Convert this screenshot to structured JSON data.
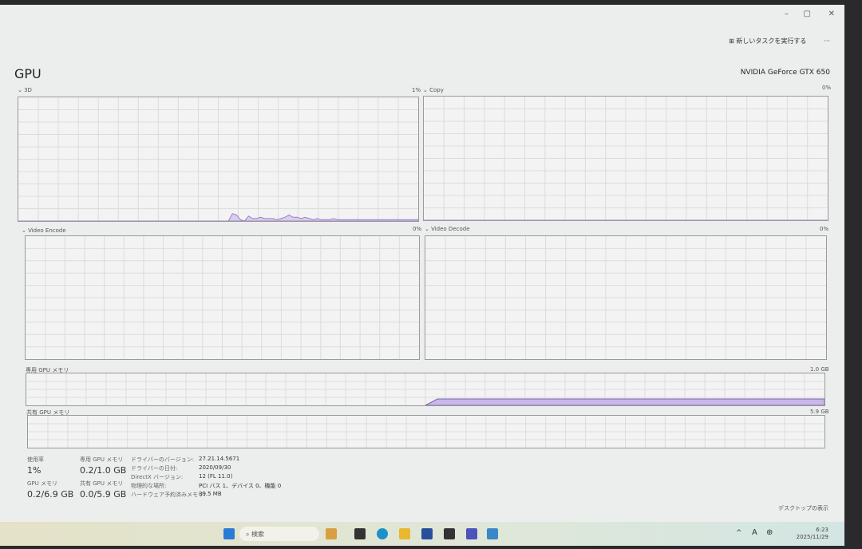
{
  "window": {
    "minimize": "–",
    "maximize": "▢",
    "close": "✕",
    "run_new_task": "新しいタスクを実行する",
    "more": "···"
  },
  "header": {
    "title": "GPU",
    "gpu_name": "NVIDIA GeForce GTX 650"
  },
  "graphs": [
    {
      "label": "3D",
      "value": "1%",
      "series": [
        0,
        0,
        0,
        0,
        0,
        0,
        0,
        0,
        0,
        0,
        0,
        0,
        0,
        0,
        0,
        0,
        0,
        0,
        0,
        0,
        0,
        0,
        0,
        0,
        0,
        0,
        0,
        0,
        0,
        0,
        0,
        0,
        0,
        0,
        0,
        0,
        0,
        0,
        0,
        0,
        0,
        0,
        0,
        0,
        0,
        0,
        0,
        0,
        0,
        0,
        0,
        0,
        0,
        6,
        5,
        1,
        0,
        4,
        2,
        2,
        3,
        2,
        2,
        2,
        1,
        2,
        3,
        5,
        3,
        3,
        2,
        3,
        2,
        1,
        2,
        1,
        1,
        1,
        2,
        1,
        1,
        1,
        1,
        1,
        1,
        1,
        1,
        1,
        1,
        1,
        1,
        1,
        1,
        1,
        1,
        1,
        1,
        1,
        1,
        1
      ]
    },
    {
      "label": "Copy",
      "value": "0%",
      "series": [
        0,
        0,
        0,
        0,
        0,
        0,
        0,
        0,
        0,
        0,
        0,
        0,
        0,
        0,
        0,
        0,
        0,
        0,
        0,
        0,
        0,
        0,
        0,
        0,
        0,
        0,
        0,
        0,
        0,
        0,
        0,
        0,
        0,
        0,
        0,
        0,
        0,
        0,
        0,
        0,
        0,
        0,
        0,
        0,
        0,
        0,
        0,
        0,
        0,
        0,
        0,
        0,
        0,
        0,
        0,
        0,
        0,
        0,
        0,
        0,
        0,
        0,
        0,
        0,
        0,
        0,
        0,
        0,
        0,
        0,
        0,
        0,
        0,
        0,
        0,
        0,
        0,
        0,
        0,
        0,
        0,
        0,
        0,
        0,
        0,
        0,
        0,
        0,
        0,
        0,
        0,
        0,
        0,
        0,
        0,
        0,
        0,
        0,
        0,
        0
      ]
    },
    {
      "label": "Video Encode",
      "value": "0%",
      "series": []
    },
    {
      "label": "Video Decode",
      "value": "0%",
      "series": []
    }
  ],
  "dedicated_memory": {
    "label": "専用 GPU メモリ",
    "max": "1.0 GB",
    "usage_gb": 0.2,
    "start_fraction": 0.5
  },
  "shared_memory": {
    "label": "共有 GPU メモリ",
    "max": "5.9 GB"
  },
  "stats": {
    "utilization_label": "使用率",
    "utilization": "1%",
    "dedicated_label": "専用 GPU メモリ",
    "dedicated": "0.2/1.0 GB",
    "gpu_mem_label": "GPU メモリ",
    "gpu_mem": "0.2/6.9 GB",
    "shared_label": "共有 GPU メモリ",
    "shared": "0.0/5.9 GB",
    "details": [
      {
        "k": "ドライバーのバージョン:",
        "v": "27.21.14.5671"
      },
      {
        "k": "ドライバーの日付:",
        "v": "2020/09/30"
      },
      {
        "k": "DirectX バージョン:",
        "v": "12 (FL 11.0)"
      },
      {
        "k": "物理的な場所:",
        "v": "PCI バス 1、デバイス 0、機能 0"
      },
      {
        "k": "ハードウェア予約済みメモリ:",
        "v": "39.5 MB"
      }
    ]
  },
  "show_desktop": "デスクトップの表示",
  "taskbar": {
    "search": "検索",
    "time": "6:23",
    "date": "2025/11/29",
    "ime": "A"
  },
  "colors": {
    "accent": "#9b7fc9"
  }
}
